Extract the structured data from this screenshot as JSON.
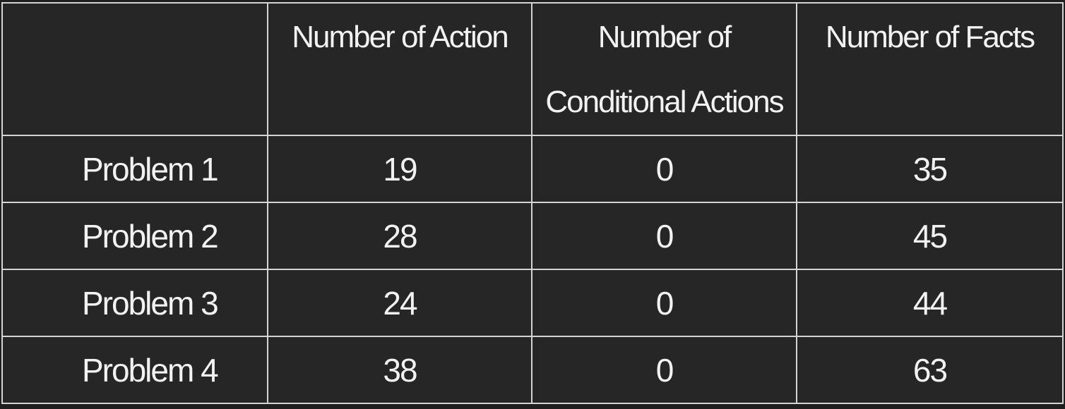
{
  "table": {
    "headers": [
      "",
      "Number of Action",
      "Number of Conditional Actions",
      "Number of Facts"
    ],
    "rows": [
      {
        "label": "Problem 1",
        "actions": "19",
        "conditional": "0",
        "facts": "35"
      },
      {
        "label": "Problem 2",
        "actions": "28",
        "conditional": "0",
        "facts": "45"
      },
      {
        "label": "Problem 3",
        "actions": "24",
        "conditional": "0",
        "facts": "44"
      },
      {
        "label": "Problem 4",
        "actions": "38",
        "conditional": "0",
        "facts": "63"
      }
    ]
  },
  "colors": {
    "background": "#262626",
    "text": "#f2f2f2",
    "border": "#d4d4d4"
  }
}
